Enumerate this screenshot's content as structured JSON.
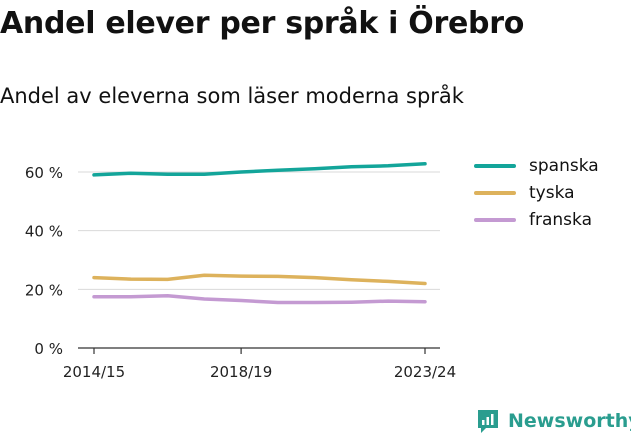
{
  "title": "Andel elever per språk i Örebro",
  "subtitle": "Andel av eleverna som läser moderna språk",
  "brand": "Newsworthy",
  "colors": {
    "spanska": "#13a59a",
    "tyska": "#ddb25c",
    "franska": "#c49ad2",
    "grid": "#d9d9d9",
    "axis": "#333333",
    "brand": "#2a9d8f"
  },
  "chart_data": {
    "type": "line",
    "title": "Andel elever per språk i Örebro",
    "subtitle": "Andel av eleverna som läser moderna språk",
    "x": [
      "2014/15",
      "2015/16",
      "2016/17",
      "2017/18",
      "2018/19",
      "2019/20",
      "2020/21",
      "2021/22",
      "2022/23",
      "2023/24"
    ],
    "x_tick_labels": [
      "2014/15",
      "2018/19",
      "2023/24"
    ],
    "y_ticks": [
      0,
      20,
      40,
      60
    ],
    "y_tick_labels": [
      "0 %",
      "20 %",
      "40 %",
      "60 %"
    ],
    "ylim": [
      0,
      60
    ],
    "grid": true,
    "legend_position": "right",
    "series": [
      {
        "name": "spanska",
        "values": [
          59.0,
          59.6,
          59.2,
          59.2,
          60.0,
          60.6,
          61.1,
          61.8,
          62.1,
          62.8
        ]
      },
      {
        "name": "tyska",
        "values": [
          24.0,
          23.5,
          23.4,
          24.8,
          24.5,
          24.4,
          24.0,
          23.3,
          22.7,
          22.0
        ]
      },
      {
        "name": "franska",
        "values": [
          17.5,
          17.5,
          17.8,
          16.7,
          16.2,
          15.5,
          15.5,
          15.6,
          16.0,
          15.8
        ]
      }
    ]
  }
}
